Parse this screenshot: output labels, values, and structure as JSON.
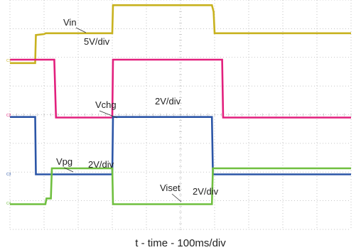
{
  "chart_data": {
    "type": "line",
    "xlabel": "t - time - 100ms/div",
    "grid": true,
    "series": [
      {
        "name": "Vin",
        "channel": "C1",
        "scale": "5V/div",
        "color": "#c8b21f",
        "x": [
          0,
          0.74,
          0.76,
          1.0,
          1.05,
          3.0,
          3.02,
          5.92,
          5.97,
          6.0,
          10.0
        ],
        "y": [
          -0.04,
          -0.04,
          0.94,
          0.97,
          1.0,
          1.0,
          1.98,
          1.98,
          1.75,
          1.0,
          1.0
        ]
      },
      {
        "name": "Vchg",
        "channel": "C2",
        "scale": "2V/div",
        "color": "#e2207d",
        "x": [
          0,
          1.3,
          1.35,
          3.0,
          3.02,
          6.22,
          6.25,
          10.0
        ],
        "y": [
          2.0,
          2.0,
          -0.02,
          -0.02,
          2.0,
          2.0,
          -0.02,
          -0.02
        ]
      },
      {
        "name": "Vpg",
        "channel": "C3",
        "scale": "2V/div",
        "color": "#2c56a7",
        "x": [
          0,
          0.74,
          0.76,
          3.0,
          3.02,
          5.92,
          5.95,
          10.0
        ],
        "y": [
          2.0,
          2.0,
          0.0,
          0.0,
          2.0,
          2.0,
          0.0,
          0.0
        ]
      },
      {
        "name": "Viset",
        "channel": "C4",
        "scale": "2V/div",
        "color": "#6fbf3f",
        "x": [
          0,
          1.04,
          1.07,
          1.2,
          1.23,
          3.0,
          3.02,
          5.92,
          5.95,
          10.0
        ],
        "y": [
          0.0,
          0.0,
          0.2,
          0.2,
          1.25,
          1.25,
          0.0,
          0.0,
          1.25,
          1.25
        ]
      }
    ]
  }
}
